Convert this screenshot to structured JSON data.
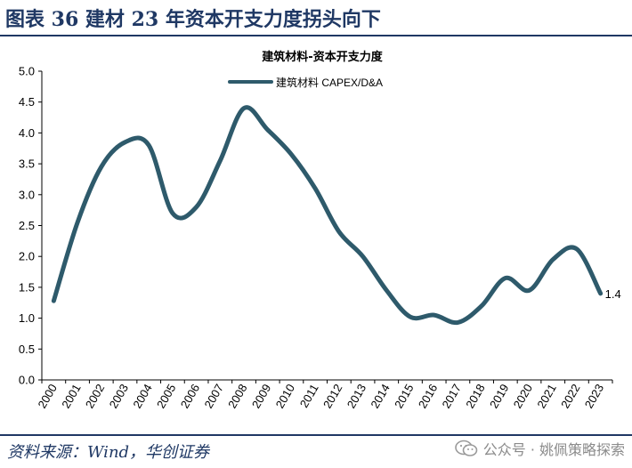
{
  "header": {
    "title": "图表 36  建材 23 年资本开支力度拐头向下"
  },
  "footer": {
    "source": "资料来源：Wind，华创证券",
    "watermark": "公众号 · 姚佩策略探索"
  },
  "colors": {
    "header": "#1f3864",
    "line": "#2e5a6b"
  },
  "chart_data": {
    "type": "line",
    "title": "建筑材料-资本开支力度",
    "legend_position": "top-center",
    "grid": false,
    "categories": [
      "2000",
      "2001",
      "2002",
      "2003",
      "2004",
      "2005",
      "2006",
      "2007",
      "2008",
      "2009",
      "2010",
      "2011",
      "2012",
      "2013",
      "2014",
      "2015",
      "2016",
      "2017",
      "2018",
      "2019",
      "2020",
      "2021",
      "2022",
      "2023"
    ],
    "series": [
      {
        "name": "建筑材料 CAPEX/D&A",
        "values": [
          1.28,
          2.55,
          3.45,
          3.85,
          3.8,
          2.7,
          2.8,
          3.55,
          4.4,
          4.05,
          3.65,
          3.1,
          2.4,
          2.0,
          1.45,
          1.02,
          1.05,
          0.93,
          1.2,
          1.65,
          1.45,
          1.95,
          2.12,
          1.4
        ]
      }
    ],
    "ylim": [
      0,
      5
    ],
    "yticks": [
      "0.0",
      "0.5",
      "1.0",
      "1.5",
      "2.0",
      "2.5",
      "3.0",
      "3.5",
      "4.0",
      "4.5",
      "5.0"
    ],
    "data_labels": [
      {
        "category": "2023",
        "text": "1.4"
      }
    ]
  }
}
